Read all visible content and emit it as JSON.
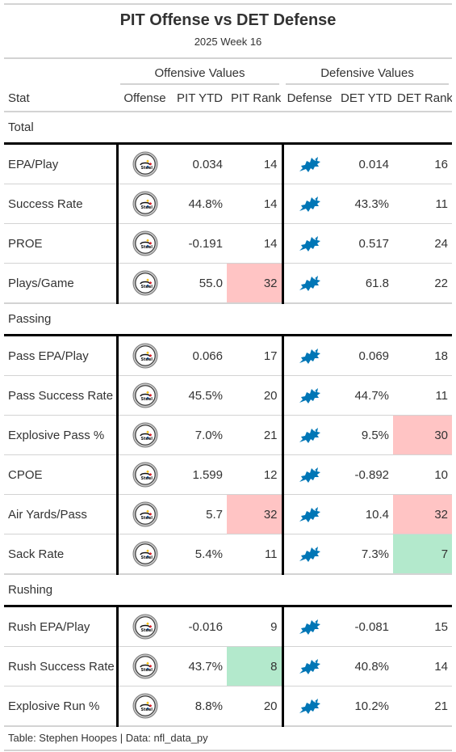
{
  "title": "PIT Offense vs DET Defense",
  "subtitle": "2025 Week 16",
  "spanners": {
    "offense": "Offensive Values",
    "defense": "Defensive Values"
  },
  "columns": {
    "stat": "Stat",
    "offense": "Offense",
    "off_ytd": "PIT YTD",
    "off_rank": "PIT Rank",
    "defense": "Defense",
    "def_ytd": "DET YTD",
    "def_rank": "DET Rank"
  },
  "offense_logo": "steelers-logo-icon",
  "defense_logo": "lions-logo-icon",
  "colors": {
    "bad_rank": "#ffc4c4",
    "good_rank": "#b3e9cc",
    "lions_blue": "#0076B6"
  },
  "groups": [
    {
      "name": "Total",
      "rows": [
        {
          "stat": "EPA/Play",
          "off_ytd": "0.034",
          "off_rank": "14",
          "def_ytd": "0.014",
          "def_rank": "16",
          "off_hl": "",
          "def_hl": ""
        },
        {
          "stat": "Success Rate",
          "off_ytd": "44.8%",
          "off_rank": "14",
          "def_ytd": "43.3%",
          "def_rank": "11",
          "off_hl": "",
          "def_hl": ""
        },
        {
          "stat": "PROE",
          "off_ytd": "-0.191",
          "off_rank": "14",
          "def_ytd": "0.517",
          "def_rank": "24",
          "off_hl": "",
          "def_hl": ""
        },
        {
          "stat": "Plays/Game",
          "off_ytd": "55.0",
          "off_rank": "32",
          "def_ytd": "61.8",
          "def_rank": "22",
          "off_hl": "bad",
          "def_hl": ""
        }
      ]
    },
    {
      "name": "Passing",
      "rows": [
        {
          "stat": "Pass EPA/Play",
          "off_ytd": "0.066",
          "off_rank": "17",
          "def_ytd": "0.069",
          "def_rank": "18",
          "off_hl": "",
          "def_hl": ""
        },
        {
          "stat": "Pass Success Rate",
          "off_ytd": "45.5%",
          "off_rank": "20",
          "def_ytd": "44.7%",
          "def_rank": "11",
          "off_hl": "",
          "def_hl": ""
        },
        {
          "stat": "Explosive Pass %",
          "off_ytd": "7.0%",
          "off_rank": "21",
          "def_ytd": "9.5%",
          "def_rank": "30",
          "off_hl": "",
          "def_hl": "bad"
        },
        {
          "stat": "CPOE",
          "off_ytd": "1.599",
          "off_rank": "12",
          "def_ytd": "-0.892",
          "def_rank": "10",
          "off_hl": "",
          "def_hl": ""
        },
        {
          "stat": "Air Yards/Pass",
          "off_ytd": "5.7",
          "off_rank": "32",
          "def_ytd": "10.4",
          "def_rank": "32",
          "off_hl": "bad",
          "def_hl": "bad"
        },
        {
          "stat": "Sack Rate",
          "off_ytd": "5.4%",
          "off_rank": "11",
          "def_ytd": "7.3%",
          "def_rank": "7",
          "off_hl": "",
          "def_hl": "good"
        }
      ]
    },
    {
      "name": "Rushing",
      "rows": [
        {
          "stat": "Rush EPA/Play",
          "off_ytd": "-0.016",
          "off_rank": "9",
          "def_ytd": "-0.081",
          "def_rank": "15",
          "off_hl": "",
          "def_hl": ""
        },
        {
          "stat": "Rush Success Rate",
          "off_ytd": "43.7%",
          "off_rank": "8",
          "def_ytd": "40.8%",
          "def_rank": "14",
          "off_hl": "good",
          "def_hl": ""
        },
        {
          "stat": "Explosive Run %",
          "off_ytd": "8.8%",
          "off_rank": "20",
          "def_ytd": "10.2%",
          "def_rank": "21",
          "off_hl": "",
          "def_hl": ""
        }
      ]
    }
  ],
  "footer": "Table: Stephen Hoopes | Data: nfl_data_py"
}
